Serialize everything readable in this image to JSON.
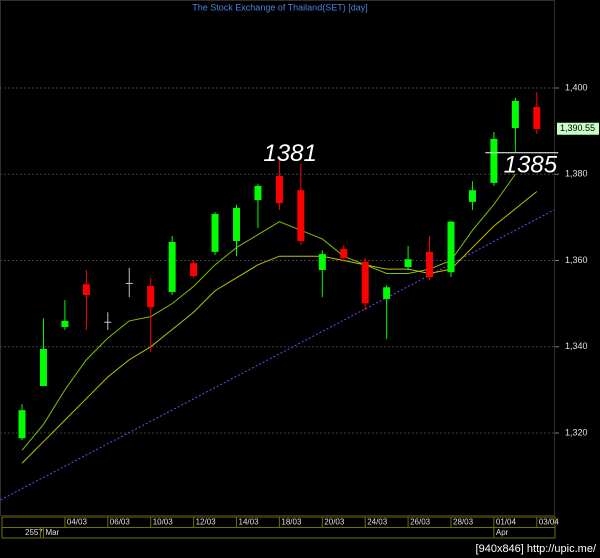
{
  "chart_data": {
    "type": "candlestick",
    "title": "The Stock Exchange of Thailand(SET) [day]",
    "categories": [
      null,
      null,
      "04/03",
      null,
      "06/03",
      null,
      "10/03",
      null,
      "12/03",
      null,
      "14/03",
      null,
      "18/03",
      null,
      "20/03",
      null,
      "24/03",
      null,
      "26/03",
      null,
      "28/03",
      null,
      "01/04",
      null,
      "03/04"
    ],
    "year_label": "2557",
    "month_labels": [
      {
        "text": "Mar",
        "start": 1
      },
      {
        "text": "Apr",
        "start": 22
      }
    ],
    "open": [
      1318.8,
      1330.9,
      1344.6,
      1354.5,
      1345.8,
      1354.8,
      1354.1,
      1352.7,
      1359.4,
      1362.0,
      1364.5,
      1374.0,
      1379.6,
      1376.3,
      1357.8,
      1362.7,
      1359.7,
      1351.1,
      1358.5,
      1362.0,
      1357.3,
      1373.6,
      1378.0,
      1390.7,
      1395.6
    ],
    "high": [
      1326.7,
      1346.6,
      1350.8,
      1357.8,
      1348.0,
      1358.3,
      1356.0,
      1365.7,
      1360.1,
      1371.2,
      1372.9,
      1377.7,
      1383.3,
      1382.4,
      1362.4,
      1363.6,
      1360.6,
      1354.3,
      1363.4,
      1365.7,
      1369.2,
      1378.4,
      1389.8,
      1397.7,
      1399.1
    ],
    "low": [
      1318.4,
      1330.9,
      1343.9,
      1343.9,
      1343.9,
      1351.5,
      1338.8,
      1352.0,
      1356.0,
      1361.3,
      1361.0,
      1367.5,
      1371.7,
      1363.6,
      1351.5,
      1359.7,
      1348.5,
      1341.8,
      1357.8,
      1355.5,
      1356.2,
      1371.7,
      1377.3,
      1385.2,
      1389.3
    ],
    "close": [
      1325.3,
      1339.5,
      1346.0,
      1352.0,
      1345.8,
      1354.8,
      1349.2,
      1364.3,
      1356.4,
      1370.8,
      1372.2,
      1377.3,
      1373.3,
      1364.5,
      1361.5,
      1360.6,
      1350.1,
      1353.8,
      1360.3,
      1356.2,
      1369.0,
      1376.3,
      1388.2,
      1397.0,
      1390.5
    ],
    "up_color": "#00ff00",
    "down_color": "#ff0000",
    "doji_color": "#c0c0c0",
    "moving_averages": [
      {
        "color": "#80c000",
        "values": [
          1316,
          1322,
          1330,
          1337,
          1342,
          1346,
          1347,
          1350,
          1354,
          1359,
          1363,
          1366,
          1369,
          1367,
          1365,
          1361,
          1359,
          1357,
          1357,
          1358,
          1360,
          1367,
          1373,
          1380,
          null
        ]
      },
      {
        "color": "#c0c000",
        "values": [
          1313,
          1318,
          1323,
          1328,
          1333,
          1337,
          1340,
          1344,
          1348,
          1353,
          1356,
          1359,
          1361,
          1361,
          1361,
          1360,
          1359,
          1358,
          1358,
          1357,
          1358,
          1363,
          1368,
          1372,
          1376
        ]
      }
    ],
    "trendline": {
      "x": [
        -1,
        24.8
      ],
      "values": [
        1304.5,
        1371.7
      ],
      "color": "#8040ff"
    },
    "hline": {
      "x": [
        21.6,
        25
      ],
      "value": 1385
    },
    "annotations": [
      {
        "text": "1381",
        "x": 12.5,
        "y": 1384.5
      },
      {
        "text": "1385",
        "x": 23.7,
        "y": 1381.9
      }
    ],
    "last_price": {
      "value": 1390.55,
      "label": "1,390.55"
    },
    "ylim": [
      1301,
      1420.4
    ],
    "yticks": [
      {
        "value": 1320,
        "label": "1,320"
      },
      {
        "value": 1340,
        "label": "1,340"
      },
      {
        "value": 1360,
        "label": "1,360"
      },
      {
        "value": 1380,
        "label": "1,380"
      },
      {
        "value": 1400,
        "label": "1,400"
      }
    ],
    "grid": true,
    "watermark": "[940x846] http://upic.me/"
  }
}
